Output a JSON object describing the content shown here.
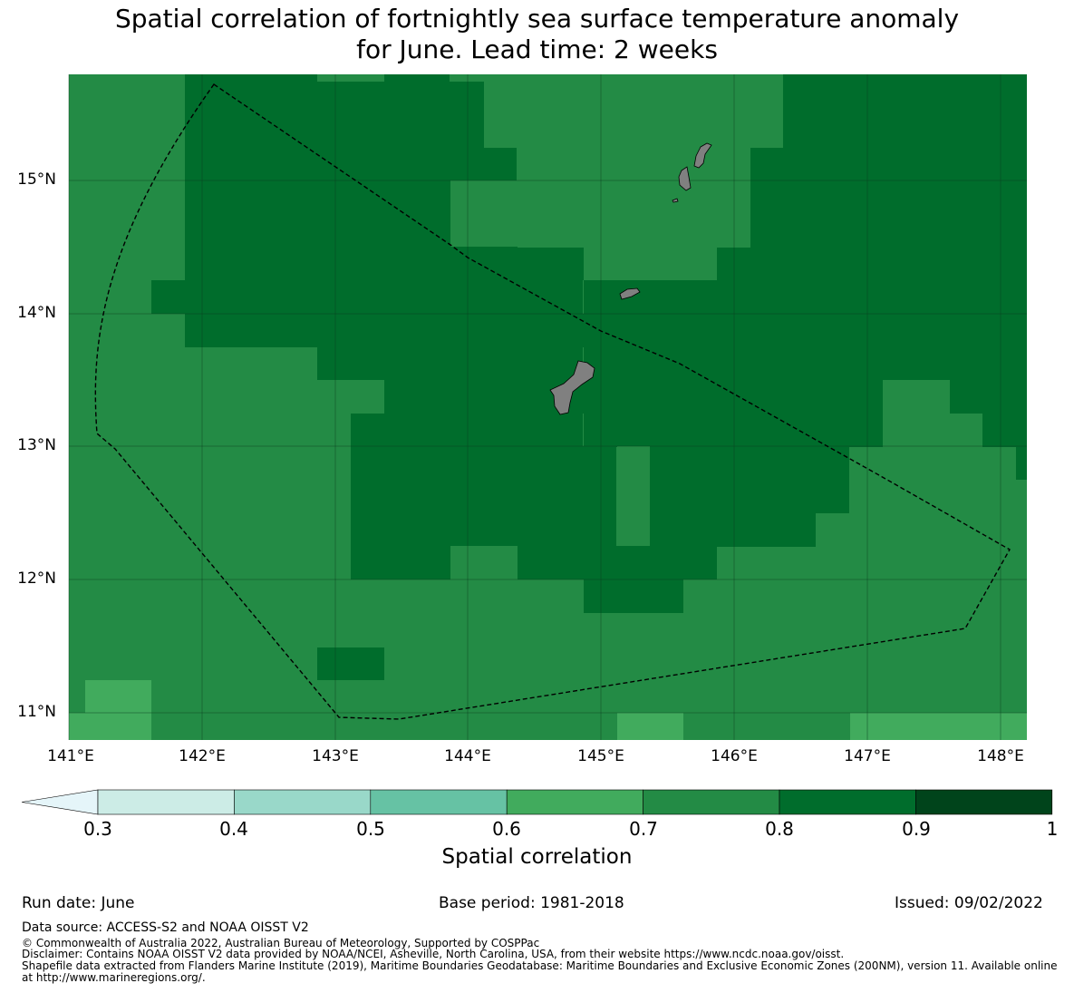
{
  "title_line1": "Spatial correlation of fortnightly sea surface temperature anomaly",
  "title_line2": "for June. Lead time: 2 weeks",
  "map": {
    "lat_labels": [
      "15°N",
      "14°N",
      "13°N",
      "12°N",
      "11°N"
    ],
    "lon_labels": [
      "141°E",
      "142°E",
      "143°E",
      "144°E",
      "145°E",
      "146°E",
      "147°E",
      "148°E"
    ],
    "colors": {
      "c06": "#41ab5d",
      "c07": "#238b45",
      "c08": "#006d2c",
      "land": "#808080"
    }
  },
  "colorbar": {
    "tick_labels": [
      "0.3",
      "0.4",
      "0.5",
      "0.6",
      "0.7",
      "0.8",
      "0.9",
      "1"
    ],
    "colors": [
      "#e5f5f9",
      "#ccece6",
      "#99d8c9",
      "#66c2a4",
      "#41ab5d",
      "#238b45",
      "#006d2c",
      "#00441b"
    ],
    "label": "Spatial correlation"
  },
  "footer": {
    "run_date": "Run date: June",
    "base_period": "Base period: 1981-2018",
    "issued": "Issued: 09/02/2022",
    "data_source": "Data source: ACCESS-S2 and NOAA OISST V2",
    "copyright": "© Commonwealth of Australia 2022, Australian Bureau of Meteorology, Supported by COSPPac",
    "disclaimer": "Disclaimer: Contains NOAA OISST V2 data provided by NOAA/NCEI, Asheville, North Carolina, USA, from their website https://www.ncdc.noaa.gov/oisst.",
    "shapefile": "Shapefile data extracted from Flanders Marine Institute (2019), Maritime Boundaries Geodatabase: Maritime Boundaries and Exclusive Economic Zones (200NM), version 11. Available online at http://www.marineregions.org/."
  }
}
